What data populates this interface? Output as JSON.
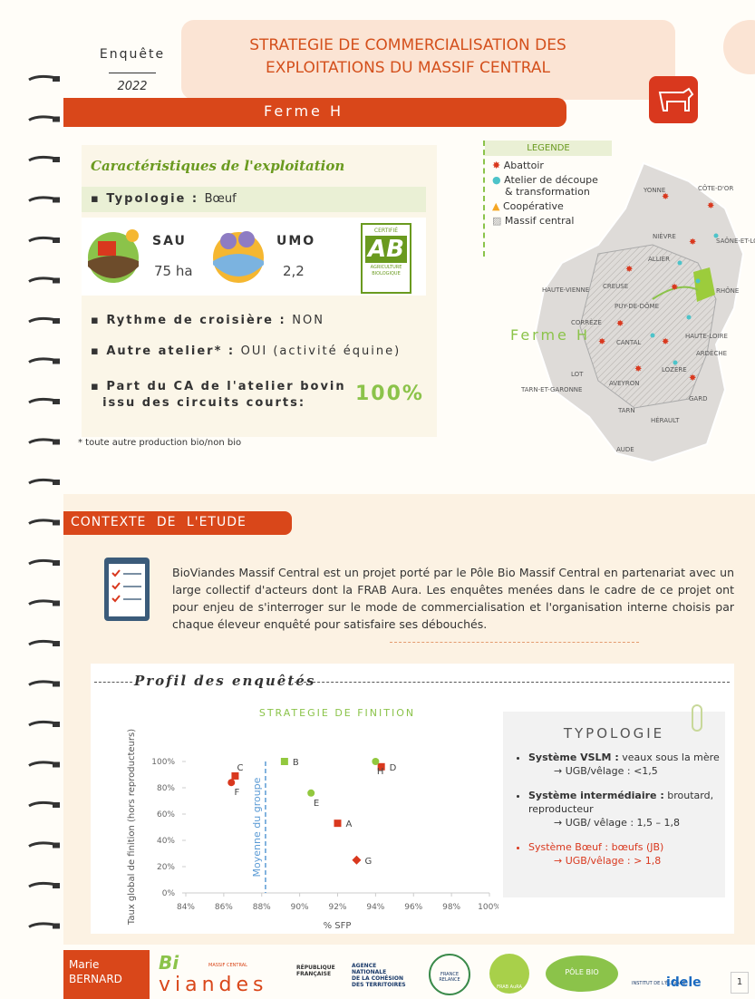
{
  "header": {
    "survey": "Enquête",
    "year": "2022",
    "title_line1": "STRATEGIE DE COMMERCIALISATION DES",
    "title_line2": "EXPLOITATIONS DU MASSIF CENTRAL",
    "farm": "Ferme H"
  },
  "characteristics": {
    "title": "Caractéristiques de l'exploitation",
    "typologie_label": "Typologie :",
    "typologie": "Bœuf",
    "sau_label": "SAU",
    "sau": "75 ha",
    "umo_label": "UMO",
    "umo": "2,2",
    "cert": "CERTIFIÉ",
    "ab": "AB",
    "ab_sub": "AGRICULTURE BIOLOGIQUE",
    "rythme_label": "Rythme de croisière :",
    "rythme": "NON",
    "autre_label": "Autre atelier* :",
    "autre": "OUI (activité équine)",
    "part_label_1": "Part du CA de l'atelier bovin",
    "part_label_2": "issu des circuits courts:",
    "part": "100%",
    "footnote": "* toute autre production bio/non bio"
  },
  "map": {
    "legend_title": "LEGENDE",
    "legend": [
      "Abattoir",
      "Atelier de découpe",
      "& transformation",
      "Coopérative",
      "Massif central"
    ],
    "farm_label": "Ferme H",
    "departments": [
      "YONNE",
      "CÔTE-D'OR",
      "NIÈVRE",
      "SAÔNE-ET-LOIRE",
      "ALLIER",
      "CREUSE",
      "HAUTE-VIENNE",
      "PUY-DE-DÔME",
      "RHÔNE",
      "CORRÈZE",
      "CANTAL",
      "HAUTE-LOIRE",
      "ARDÈCHE",
      "LOT",
      "LOZÈRE",
      "AVEYRON",
      "TARN-ET-GARONNE",
      "GARD",
      "TARN",
      "HÉRAULT",
      "AUDE"
    ]
  },
  "context": {
    "title": "CONTEXTE DE L'ETUDE",
    "text": "BioViandes Massif Central est un projet porté par le Pôle Bio Massif Central en partenariat avec un large collectif d'acteurs dont la FRAB Aura. Les enquêtes menées dans le cadre de ce projet ont pour enjeu de s'interroger sur le mode de commercialisation et l'organisation interne choisis par chaque éleveur enquêté pour satisfaire ses débouchés."
  },
  "profile": {
    "title": "Profil des enquêtés"
  },
  "chart_data": {
    "type": "scatter",
    "title": "STRATEGIE DE FINITION",
    "x_label": "% SFP",
    "y_label": "Taux global de finition (hors reproducteurs)",
    "xlim": [
      84,
      100
    ],
    "xticks": [
      {
        "value": 84,
        "label": "84%"
      },
      {
        "value": 86,
        "label": "86%"
      },
      {
        "value": 88,
        "label": "88%"
      },
      {
        "value": 90,
        "label": "90%"
      },
      {
        "value": 92,
        "label": "92%"
      },
      {
        "value": 94,
        "label": "94%"
      },
      {
        "value": 96,
        "label": "96%"
      },
      {
        "value": 98,
        "label": "98%"
      },
      {
        "value": 100,
        "label": "100%"
      }
    ],
    "ylim": [
      0,
      100
    ],
    "yticks": [
      {
        "value": 0,
        "label": "0%"
      },
      {
        "value": 20,
        "label": "20%"
      },
      {
        "value": 40,
        "label": "40%"
      },
      {
        "value": 60,
        "label": "60%"
      },
      {
        "value": 80,
        "label": "80%"
      },
      {
        "value": 100,
        "label": "100%"
      }
    ],
    "mean_line": {
      "label": "Moyenne du groupe",
      "x": 88.2,
      "color": "#5b9bd5"
    },
    "points": [
      {
        "label": "A",
        "x": 92,
        "y": 53,
        "color": "#d9381e",
        "marker": "square"
      },
      {
        "label": "B",
        "x": 89.2,
        "y": 100,
        "color": "#92c83e",
        "marker": "square"
      },
      {
        "label": "C",
        "x": 86.6,
        "y": 89,
        "color": "#d9381e",
        "marker": "square"
      },
      {
        "label": "D",
        "x": 94.3,
        "y": 96,
        "color": "#d9381e",
        "marker": "square"
      },
      {
        "label": "E",
        "x": 90.6,
        "y": 76,
        "color": "#92c83e",
        "marker": "circle"
      },
      {
        "label": "F",
        "x": 86.4,
        "y": 84,
        "color": "#d9381e",
        "marker": "circle"
      },
      {
        "label": "G",
        "x": 93,
        "y": 25,
        "color": "#d9381e",
        "marker": "diamond"
      },
      {
        "label": "H",
        "x": 94,
        "y": 100,
        "color": "#92c83e",
        "marker": "circle"
      }
    ]
  },
  "typology": {
    "title": "TYPOLOGIE",
    "items": [
      {
        "bold": "Système VSLM :",
        "text": "veaux sous la mère",
        "sub": "→ UGB/vêlage : <1,5"
      },
      {
        "bold": "Système intermédiaire :",
        "text": "broutard, reproducteur",
        "sub": "→ UGB/ vêlage : 1,5 – 1,8"
      },
      {
        "bold": "Système Bœuf :",
        "text": "bœufs (JB)",
        "sub": "→ UGB/vêlage : > 1,8"
      }
    ]
  },
  "footer": {
    "author_1": "Marie",
    "author_2": "BERNARD",
    "bio_1": "Bi",
    "bio_2": "viandes",
    "massif": "MASSIF CENTRAL",
    "rf": "RÉPUBLIQUE FRANÇAISE",
    "anct_1": "AGENCE",
    "anct_2": "NATIONALE",
    "anct_3": "DE LA COHÉSION",
    "anct_4": "DES TERRITOIRES",
    "relance": "FRANCE RELANCE",
    "frab": "FRAB AuRA",
    "pole": "PÔLE BIO",
    "idele_1": "INSTITUT DE L'ÉLEVAGE",
    "idele_2": "idele",
    "page": "1"
  }
}
